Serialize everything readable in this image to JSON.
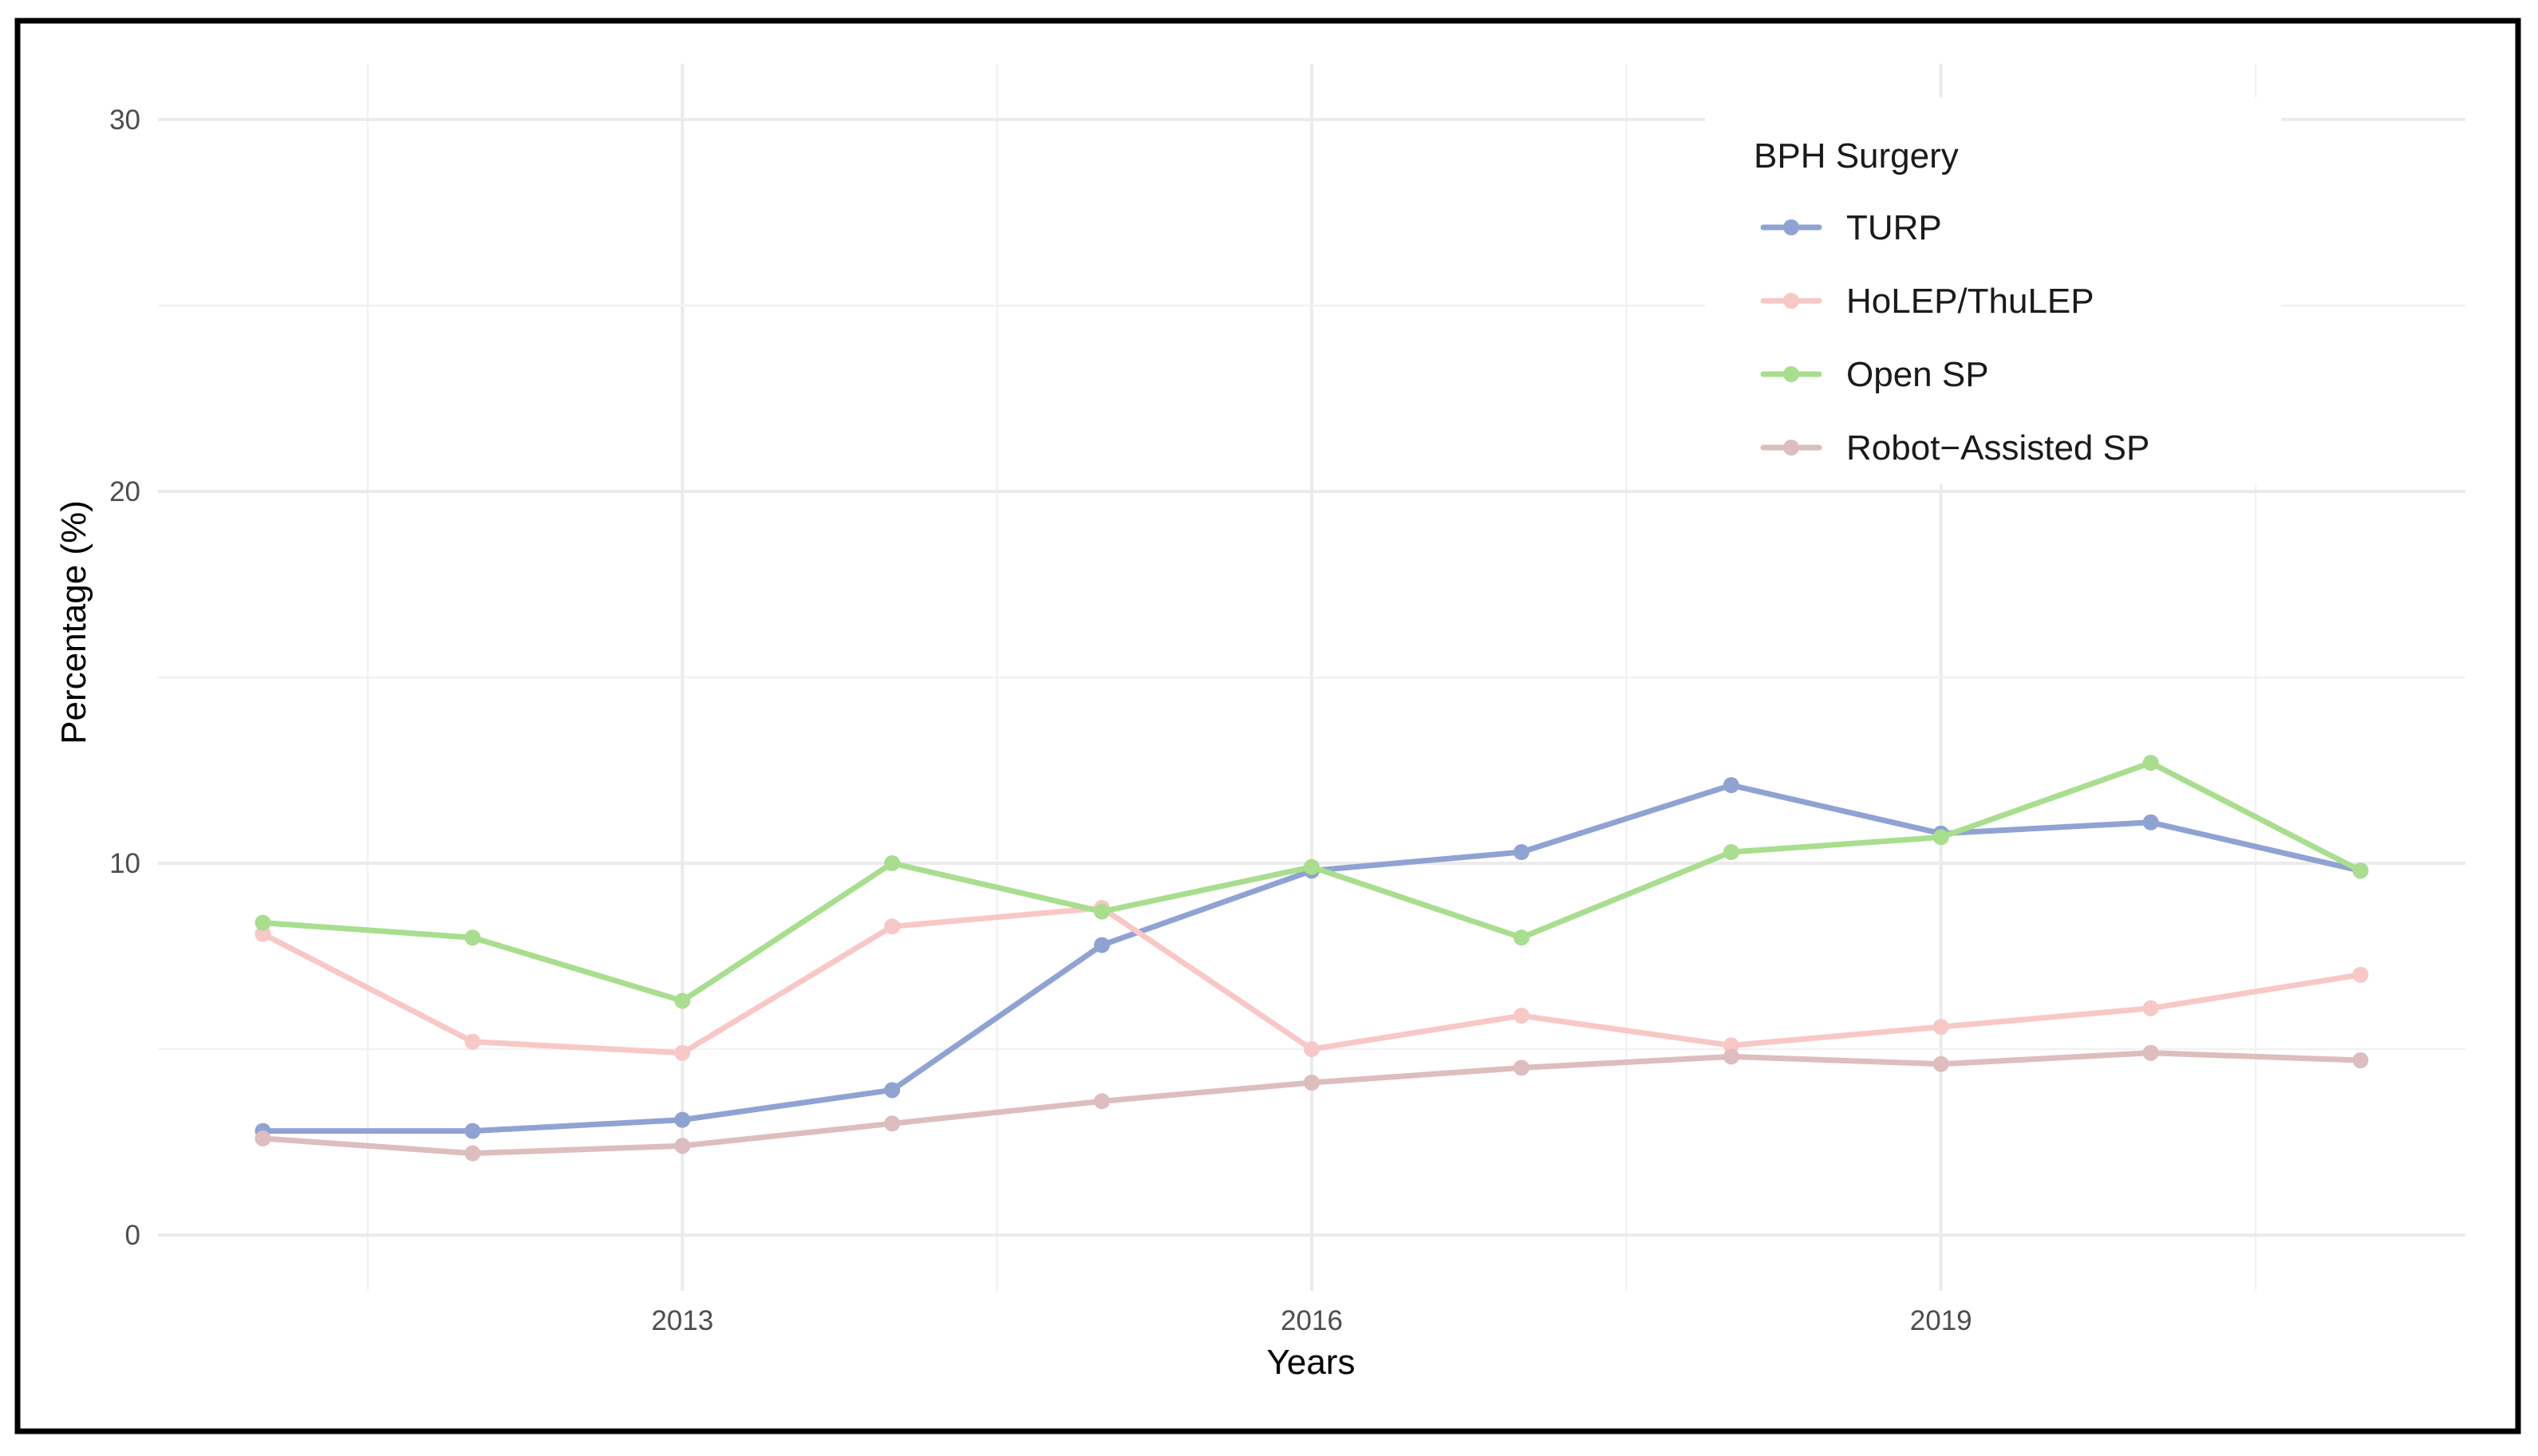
{
  "chart_data": {
    "type": "line",
    "title": "",
    "xlabel": "Years",
    "ylabel": "Percentage (%)",
    "xlim": [
      2010.5,
      2021.5
    ],
    "ylim": [
      -1.5,
      31.5
    ],
    "x_ticks": [
      2013,
      2016,
      2019
    ],
    "x_tick_labels": [
      "2013",
      "2016",
      "2019"
    ],
    "y_ticks": [
      0,
      10,
      20,
      30
    ],
    "y_tick_labels": [
      "0",
      "10",
      "20",
      "30"
    ],
    "grid": true,
    "legend": {
      "title": "BPH Surgery",
      "position": "top-right"
    },
    "x": [
      2011,
      2012,
      2013,
      2014,
      2015,
      2016,
      2017,
      2018,
      2019,
      2020,
      2021
    ],
    "series": [
      {
        "name": "TURP",
        "color": "#8FA3D3",
        "values": [
          2.8,
          2.8,
          3.1,
          3.9,
          7.8,
          9.8,
          10.3,
          12.1,
          10.8,
          11.1,
          9.8
        ]
      },
      {
        "name": "HoLEP/ThuLEP",
        "color": "#F8C8C6",
        "values": [
          8.1,
          5.2,
          4.9,
          8.3,
          8.8,
          5.0,
          5.9,
          5.1,
          5.6,
          6.1,
          7.0
        ]
      },
      {
        "name": "Open SP",
        "color": "#A8DE8E",
        "values": [
          8.4,
          8.0,
          6.3,
          10.0,
          8.7,
          9.9,
          8.0,
          10.3,
          10.7,
          12.7,
          9.8
        ]
      },
      {
        "name": "Robot−Assisted SP",
        "color": "#DDBDBD",
        "values": [
          2.6,
          2.2,
          2.4,
          3.0,
          3.6,
          4.1,
          4.5,
          4.8,
          4.6,
          4.9,
          4.7
        ]
      }
    ]
  }
}
